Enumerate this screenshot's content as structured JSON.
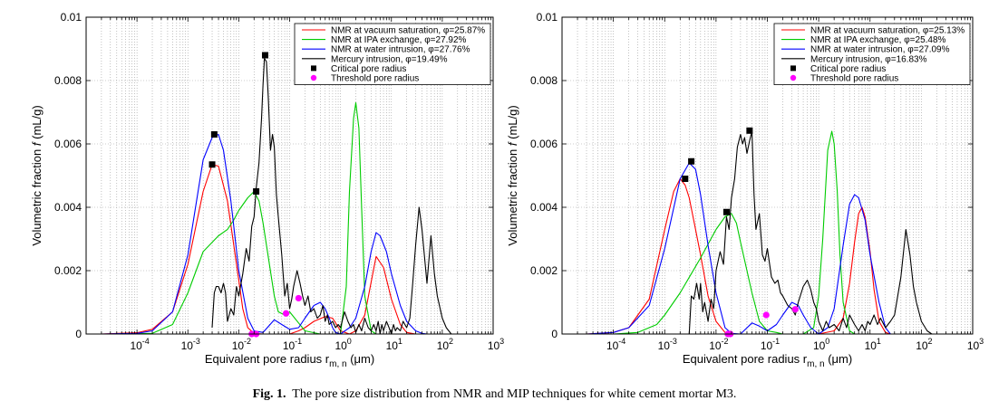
{
  "caption": {
    "label": "Fig. 1.",
    "text": "The pore size distribution from NMR and MIP techniques for white cement mortar M3."
  },
  "colors": {
    "red": "#ff0000",
    "green": "#00cc00",
    "blue": "#0000ff",
    "black": "#000000",
    "magenta": "#ff00ff"
  },
  "chart_data": [
    {
      "type": "line",
      "title": "",
      "xlabel_main": "Equivalent pore radius r",
      "xlabel_sub": "m, n",
      "xlabel_unit": "(μm)",
      "ylabel_main": "Volumetric fraction ",
      "ylabel_f": "f",
      "ylabel_unit": " (mL/g)",
      "xscale": "log",
      "xlim": [
        1e-05,
        1000
      ],
      "ylim": [
        0,
        0.01
      ],
      "xticks": [
        {
          "exp": "-4",
          "value": 0.0001
        },
        {
          "exp": "-3",
          "value": 0.001
        },
        {
          "exp": "-2",
          "value": 0.01
        },
        {
          "exp": "-1",
          "value": 0.1
        },
        {
          "exp": "0",
          "value": 1
        },
        {
          "exp": "1",
          "value": 10
        },
        {
          "exp": "2",
          "value": 100
        },
        {
          "exp": "3",
          "value": 1000
        }
      ],
      "yticks": [
        {
          "label": "0",
          "value": 0
        },
        {
          "label": "0.002",
          "value": 0.002
        },
        {
          "label": "0.004",
          "value": 0.004
        },
        {
          "label": "0.006",
          "value": 0.006
        },
        {
          "label": "0.008",
          "value": 0.008
        },
        {
          "label": "0.01",
          "value": 0.01
        }
      ],
      "grid": true,
      "legend_position": "top-right",
      "series": [
        {
          "name": "NMR at vacuum saturation, φ=25.87%",
          "color": "red",
          "x": [
            2e-05,
            0.0001,
            0.0002,
            0.0005,
            0.001,
            0.002,
            0.003,
            0.004,
            0.006,
            0.008,
            0.01,
            0.012,
            0.015,
            0.02,
            0.03,
            0.05,
            0.1,
            0.15,
            0.2,
            0.3,
            0.5,
            0.7,
            1,
            1.5,
            2,
            3,
            5,
            7,
            10,
            15,
            20,
            30
          ],
          "y": [
            0,
            4e-05,
            0.00015,
            0.0007,
            0.0022,
            0.0045,
            0.00535,
            0.0053,
            0.0042,
            0.0028,
            0.0017,
            0.0008,
            0.0002,
            2e-05,
            0,
            0,
            0,
            0.0001,
            0.0002,
            0.0004,
            0.00055,
            0.0005,
            0.0001,
            0,
            0.0001,
            0.0006,
            0.00245,
            0.0021,
            0.0011,
            0.0003,
            5e-05,
            0
          ]
        },
        {
          "name": "NMR at IPA exchange, φ=27.92%",
          "color": "green",
          "x": [
            5e-05,
            0.0002,
            0.0005,
            0.001,
            0.002,
            0.004,
            0.006,
            0.008,
            0.01,
            0.015,
            0.02,
            0.025,
            0.03,
            0.04,
            0.05,
            0.06,
            0.08,
            0.1,
            0.15,
            0.2,
            0.4,
            0.6,
            1,
            1.3,
            1.5,
            1.8,
            2,
            2.3,
            2.6,
            3,
            4,
            5,
            10
          ],
          "y": [
            0,
            2e-05,
            0.0003,
            0.0013,
            0.0026,
            0.0031,
            0.0033,
            0.0036,
            0.0039,
            0.0043,
            0.0045,
            0.0042,
            0.0035,
            0.0022,
            0.0012,
            0.0007,
            0.0006,
            0.0007,
            0.00035,
            0.0001,
            0,
            0,
            0,
            0.0015,
            0.0045,
            0.0068,
            0.0073,
            0.0065,
            0.004,
            0.0012,
            0.0001,
            0,
            0
          ]
        },
        {
          "name": "NMR at water intrusion, φ=27.76%",
          "color": "blue",
          "x": [
            2e-05,
            0.0001,
            0.0002,
            0.0005,
            0.001,
            0.002,
            0.003,
            0.004,
            0.005,
            0.007,
            0.01,
            0.015,
            0.02,
            0.03,
            0.05,
            0.07,
            0.1,
            0.15,
            0.2,
            0.3,
            0.4,
            0.5,
            0.6,
            0.7,
            0.8,
            1,
            1.5,
            2,
            3,
            4,
            5,
            6,
            8,
            10,
            15,
            20,
            30,
            40,
            50,
            60
          ],
          "y": [
            0,
            2e-05,
            0.0001,
            0.0007,
            0.0025,
            0.0055,
            0.0062,
            0.0063,
            0.0058,
            0.0042,
            0.002,
            0.0005,
            0.0001,
            5e-05,
            0.00045,
            0.0003,
            0.00015,
            0.0002,
            0.0005,
            0.0009,
            0.001,
            0.0008,
            0.0005,
            0.0002,
            5e-05,
            0,
            0.0002,
            0.0005,
            0.0015,
            0.0026,
            0.0032,
            0.0031,
            0.0026,
            0.0019,
            0.0009,
            0.0004,
            0.0001,
            2e-05,
            0,
            0
          ]
        },
        {
          "name": "Mercury intrusion, φ=19.49%",
          "color": "black",
          "x": [
            0.003,
            0.0033,
            0.0036,
            0.004,
            0.0045,
            0.005,
            0.0055,
            0.006,
            0.007,
            0.008,
            0.009,
            0.01,
            0.012,
            0.014,
            0.016,
            0.018,
            0.02,
            0.022,
            0.025,
            0.028,
            0.03,
            0.032,
            0.035,
            0.038,
            0.042,
            0.046,
            0.05,
            0.055,
            0.06,
            0.07,
            0.08,
            0.09,
            0.1,
            0.11,
            0.12,
            0.14,
            0.16,
            0.18,
            0.2,
            0.23,
            0.26,
            0.3,
            0.35,
            0.4,
            0.45,
            0.5,
            0.55,
            0.6,
            0.7,
            0.8,
            0.9,
            1,
            1.2,
            1.4,
            1.6,
            1.8,
            2,
            2.3,
            2.6,
            3,
            3.5,
            4,
            4.5,
            5,
            5.5,
            6,
            6.5,
            7,
            8,
            9,
            10,
            11,
            12,
            13,
            15,
            17,
            20,
            23,
            26,
            30,
            35,
            40,
            50,
            60,
            70,
            80,
            100,
            120,
            150,
            180
          ],
          "y": [
            0.0002,
            0.0013,
            0.0015,
            0.0015,
            0.0013,
            0.0016,
            0.0013,
            0.0004,
            0.0008,
            0.0006,
            0.0015,
            0.0012,
            0.0019,
            0.0027,
            0.0023,
            0.0034,
            0.0037,
            0.0046,
            0.0054,
            0.0068,
            0.0079,
            0.0087,
            0.0086,
            0.0075,
            0.0058,
            0.0063,
            0.0059,
            0.0044,
            0.0037,
            0.0025,
            0.0012,
            0.0016,
            0.0008,
            0.0011,
            0.0015,
            0.002,
            0.0016,
            0.0012,
            0.0009,
            0.0012,
            0.0007,
            0.0008,
            0.0005,
            0.0006,
            0.0009,
            0.0004,
            0.0006,
            0.0003,
            0.0004,
            0.0002,
            0.0003,
            0.0002,
            0.0007,
            0.0004,
            0.0002,
            0.0003,
            5e-05,
            0.0003,
            0.0001,
            0.0005,
            0.0002,
            0.0001,
            0.0003,
            0.0001,
            0.0004,
            0,
            0.0003,
            0.0001,
            0.0004,
            0.0002,
            0,
            0.0003,
            0.0001,
            0.0002,
            0.0001,
            0.0004,
            0.0002,
            0.0005,
            0.0015,
            0.0028,
            0.004,
            0.0033,
            0.0016,
            0.0031,
            0.0019,
            0.0012,
            0.0005,
            0.0002,
            0,
            0
          ]
        }
      ],
      "critical_pore_radius": {
        "name": "Critical pore radius",
        "x": [
          0.003,
          0.0033,
          0.022,
          0.033
        ],
        "y": [
          0.00535,
          0.0063,
          0.0045,
          0.0088
        ]
      },
      "threshold_pore_radius": {
        "name": "Threshold pore radius",
        "x": [
          0.018,
          0.022,
          0.085,
          0.15
        ],
        "y": [
          0,
          0,
          0.00065,
          0.00113
        ]
      }
    },
    {
      "type": "line",
      "title": "",
      "xlabel_main": "Equivalent pore radius r",
      "xlabel_sub": "m, n",
      "xlabel_unit": "(μm)",
      "ylabel_main": "Volumetric fraction ",
      "ylabel_f": "f",
      "ylabel_unit": " (mL/g)",
      "xscale": "log",
      "xlim": [
        1e-05,
        1000
      ],
      "ylim": [
        0,
        0.01
      ],
      "xticks": [
        {
          "exp": "-4",
          "value": 0.0001
        },
        {
          "exp": "-3",
          "value": 0.001
        },
        {
          "exp": "-2",
          "value": 0.01
        },
        {
          "exp": "-1",
          "value": 0.1
        },
        {
          "exp": "0",
          "value": 1
        },
        {
          "exp": "1",
          "value": 10
        },
        {
          "exp": "2",
          "value": 100
        },
        {
          "exp": "3",
          "value": 1000
        }
      ],
      "yticks": [
        {
          "label": "0",
          "value": 0
        },
        {
          "label": "0.002",
          "value": 0.002
        },
        {
          "label": "0.004",
          "value": 0.004
        },
        {
          "label": "0.006",
          "value": 0.006
        },
        {
          "label": "0.008",
          "value": 0.008
        },
        {
          "label": "0.01",
          "value": 0.01
        }
      ],
      "grid": true,
      "legend_position": "top-right",
      "series": [
        {
          "name": "NMR at vacuum saturation, φ=25.13%",
          "color": "red",
          "x": [
            3e-05,
            0.0001,
            0.0002,
            0.0005,
            0.001,
            0.0015,
            0.002,
            0.0025,
            0.003,
            0.004,
            0.005,
            0.007,
            0.01,
            0.015,
            0.02,
            0.03,
            1,
            2,
            3,
            4,
            5,
            6,
            7,
            8,
            10,
            12,
            15,
            20,
            25
          ],
          "y": [
            0,
            5e-05,
            0.0002,
            0.0011,
            0.0033,
            0.0045,
            0.0049,
            0.0047,
            0.0043,
            0.0033,
            0.0025,
            0.0012,
            0.0004,
            5e-05,
            0,
            0,
            0,
            0.0001,
            0.0005,
            0.0016,
            0.0029,
            0.0038,
            0.004,
            0.0037,
            0.0026,
            0.0014,
            0.0004,
            5e-05,
            0
          ]
        },
        {
          "name": "NMR at IPA exchange, φ=25.48%",
          "color": "green",
          "x": [
            0.0001,
            0.0003,
            0.0007,
            0.001,
            0.002,
            0.005,
            0.01,
            0.015,
            0.02,
            0.025,
            0.03,
            0.05,
            0.07,
            0.1,
            0.15,
            0.2,
            0.3,
            0.5,
            0.8,
            1,
            1.2,
            1.5,
            1.8,
            2,
            2.3,
            2.6,
            3,
            4,
            5
          ],
          "y": [
            0,
            5e-05,
            0.0003,
            0.0006,
            0.0013,
            0.0024,
            0.0033,
            0.0037,
            0.0038,
            0.0035,
            0.0029,
            0.0013,
            0.0004,
            0.0001,
            5e-05,
            0,
            0,
            0,
            0.0002,
            0.0012,
            0.003,
            0.0058,
            0.0064,
            0.006,
            0.0045,
            0.0025,
            0.001,
            0.0001,
            0
          ]
        },
        {
          "name": "NMR at water intrusion, φ=27.09%",
          "color": "blue",
          "x": [
            3e-05,
            0.0001,
            0.0002,
            0.0005,
            0.001,
            0.002,
            0.003,
            0.004,
            0.005,
            0.007,
            0.01,
            0.015,
            0.02,
            0.03,
            0.05,
            0.07,
            0.1,
            0.15,
            0.2,
            0.3,
            0.4,
            0.5,
            0.7,
            1,
            1.5,
            2,
            3,
            4,
            5,
            6,
            8,
            10,
            15,
            20,
            25
          ],
          "y": [
            0,
            5e-05,
            0.0002,
            0.0009,
            0.0027,
            0.0049,
            0.0054,
            0.0052,
            0.0044,
            0.0028,
            0.0013,
            0.0002,
            2e-05,
            0,
            0.00035,
            0.00025,
            0.0001,
            0.0003,
            0.0006,
            0.001,
            0.0009,
            0.0006,
            0.0002,
            0,
            0.0002,
            0.0008,
            0.0028,
            0.0041,
            0.0044,
            0.0043,
            0.0036,
            0.0025,
            0.001,
            0.0002,
            0
          ]
        },
        {
          "name": "Mercury intrusion, φ=16.83%",
          "color": "black",
          "x": [
            0.003,
            0.0033,
            0.0037,
            0.0042,
            0.0047,
            0.005,
            0.0055,
            0.006,
            0.007,
            0.008,
            0.009,
            0.01,
            0.012,
            0.014,
            0.016,
            0.018,
            0.02,
            0.023,
            0.026,
            0.03,
            0.033,
            0.036,
            0.04,
            0.045,
            0.05,
            0.055,
            0.06,
            0.07,
            0.08,
            0.09,
            0.1,
            0.12,
            0.14,
            0.16,
            0.18,
            0.2,
            0.25,
            0.3,
            0.35,
            0.4,
            0.5,
            0.6,
            0.7,
            0.8,
            0.9,
            1,
            1.2,
            1.4,
            1.6,
            2,
            2.5,
            3,
            3.5,
            4,
            5,
            6,
            7,
            8,
            9,
            10,
            12,
            14,
            16,
            20,
            25,
            30,
            40,
            50,
            60,
            70,
            80,
            100,
            130,
            160
          ],
          "y": [
            0,
            0.0012,
            0.0011,
            0.0016,
            0.0011,
            0.0016,
            0.0007,
            0.001,
            0.0004,
            0.0011,
            0.0008,
            0.002,
            0.0026,
            0.0022,
            0.0037,
            0.0033,
            0.0043,
            0.0049,
            0.0059,
            0.0063,
            0.006,
            0.0062,
            0.0057,
            0.0061,
            0.0064,
            0.0044,
            0.0033,
            0.0038,
            0.0025,
            0.0023,
            0.0027,
            0.0018,
            0.0016,
            0.0017,
            0.0013,
            0.0012,
            0.0009,
            0.0008,
            0.0006,
            0.001,
            0.0015,
            0.0017,
            0.0014,
            0.001,
            0.0008,
            0.0004,
            0.0001,
            0.0004,
            0.0002,
            0.0003,
            0.0001,
            0.0005,
            0.0002,
            0.0006,
            0.0003,
            0.0001,
            0.0003,
            0.0001,
            0.0004,
            0.0003,
            0.0006,
            0.0003,
            0.0005,
            0.0002,
            0.0004,
            0.0006,
            0.0018,
            0.0033,
            0.0025,
            0.0015,
            0.001,
            0.0004,
            0.0001,
            0
          ]
        }
      ],
      "critical_pore_radius": {
        "name": "Critical pore radius",
        "x": [
          0.0025,
          0.0033,
          0.016,
          0.045
        ],
        "y": [
          0.0049,
          0.00545,
          0.00385,
          0.00642
        ]
      },
      "threshold_pore_radius": {
        "name": "Threshold pore radius",
        "x": [
          0.017,
          0.019,
          0.095,
          0.35
        ],
        "y": [
          0,
          0,
          0.0006,
          0.00078
        ]
      }
    }
  ]
}
